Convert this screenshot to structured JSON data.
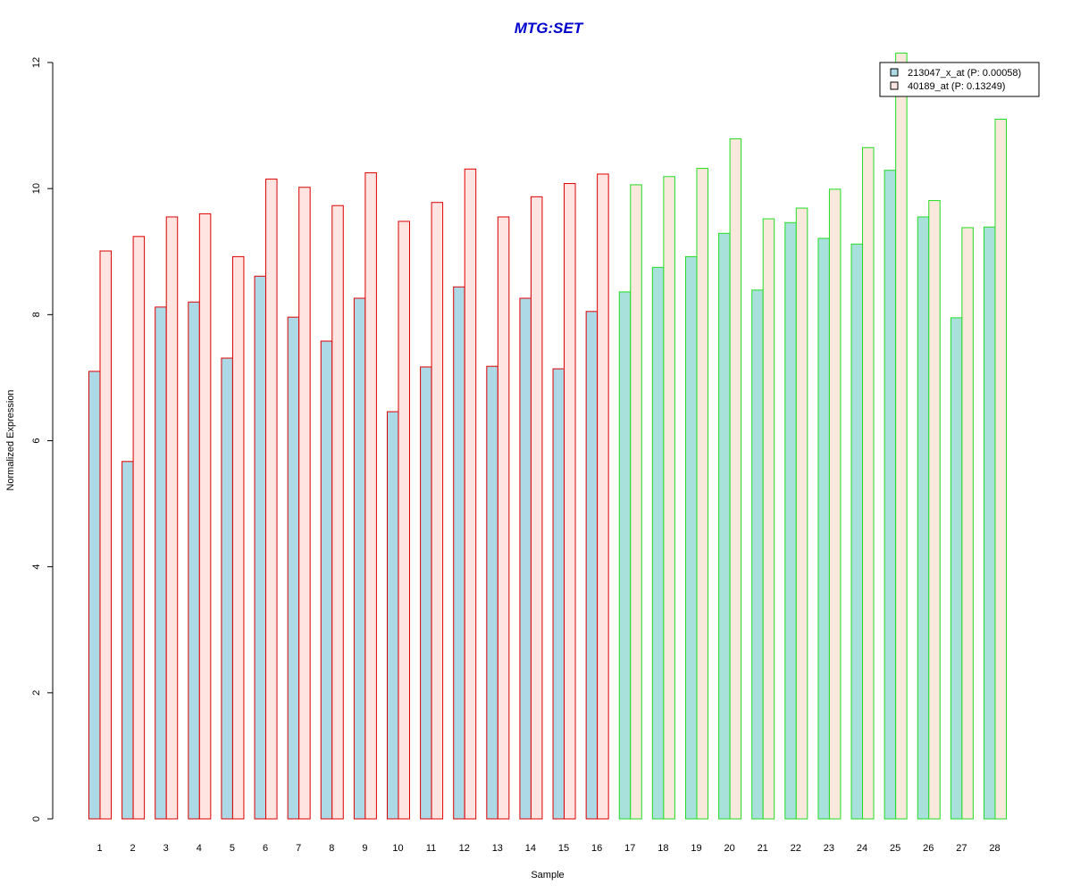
{
  "chart_data": {
    "type": "bar",
    "title": "MTG:SET",
    "xlabel": "Sample",
    "ylabel": "Normalized Expression",
    "ylim": [
      0,
      12
    ],
    "yticks": [
      0,
      2,
      4,
      6,
      8,
      10,
      12
    ],
    "grid": false,
    "legend_position": "top-right",
    "categories": [
      "1",
      "2",
      "3",
      "4",
      "5",
      "6",
      "7",
      "8",
      "9",
      "10",
      "11",
      "12",
      "13",
      "14",
      "15",
      "16",
      "17",
      "18",
      "19",
      "20",
      "21",
      "22",
      "23",
      "24",
      "25",
      "26",
      "27",
      "28"
    ],
    "series": [
      {
        "name": "213047_x_at (P: 0.00058)",
        "values": [
          7.1,
          5.67,
          8.12,
          8.2,
          7.31,
          8.61,
          7.96,
          7.58,
          8.26,
          6.46,
          7.17,
          8.44,
          7.18,
          8.26,
          7.14,
          8.05,
          8.36,
          8.75,
          8.92,
          9.29,
          8.39,
          9.46,
          9.21,
          9.12,
          10.29,
          9.55,
          7.95,
          9.39
        ]
      },
      {
        "name": "40189_at (P: 0.13249)",
        "values": [
          9.01,
          9.24,
          9.55,
          9.6,
          8.92,
          10.15,
          10.02,
          9.73,
          10.25,
          9.48,
          9.78,
          10.31,
          9.55,
          9.87,
          10.08,
          10.23,
          10.06,
          10.19,
          10.32,
          10.79,
          9.52,
          9.69,
          9.99,
          10.65,
          12.15,
          9.81,
          9.38,
          11.1
        ]
      }
    ],
    "group_sizes": [
      16,
      12
    ],
    "colors": {
      "series_fills": [
        "#add8e6",
        "#ffe4e1"
      ],
      "series_fills_group2": [
        "#a8e0dc",
        "#f9e8dc"
      ],
      "group_borders": [
        "#dd0000",
        "#22dd22"
      ],
      "title": "#0000cc"
    }
  }
}
